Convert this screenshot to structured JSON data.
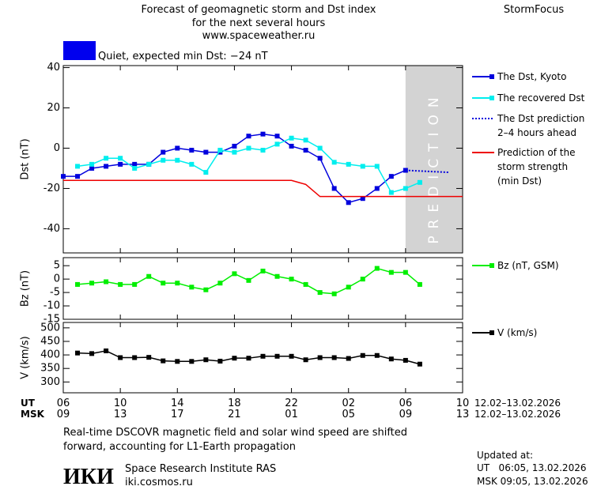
{
  "header": {
    "title_lines": [
      "Forecast of geomagnetic storm and Dst index",
      "for the next several hours",
      "www.spaceweather.ru"
    ],
    "brand": "StormFocus",
    "status": "Quiet, expected min Dst: −24 nT",
    "status_color": "#0000ee"
  },
  "time_axis": {
    "xlim": [
      0,
      28
    ],
    "ut_label": "UT",
    "msk_label": "MSK",
    "ut_ticks": [
      {
        "value": 0,
        "label": "06"
      },
      {
        "value": 4,
        "label": "10"
      },
      {
        "value": 8,
        "label": "14"
      },
      {
        "value": 12,
        "label": "18"
      },
      {
        "value": 16,
        "label": "22"
      },
      {
        "value": 20,
        "label": "02"
      },
      {
        "value": 24,
        "label": "06"
      },
      {
        "value": 28,
        "label": "10"
      }
    ],
    "msk_ticks": [
      {
        "value": 0,
        "label": "09"
      },
      {
        "value": 4,
        "label": "13"
      },
      {
        "value": 8,
        "label": "17"
      },
      {
        "value": 12,
        "label": "21"
      },
      {
        "value": 16,
        "label": "01"
      },
      {
        "value": 20,
        "label": "05"
      },
      {
        "value": 24,
        "label": "09"
      },
      {
        "value": 28,
        "label": "13"
      }
    ],
    "ut_dates": "12.02–13.02.2026",
    "msk_dates": "12.02–13.02.2026"
  },
  "chart_data": [
    {
      "type": "line",
      "y_label": "Dst (nT)",
      "xlim": [
        0,
        28
      ],
      "ylim": [
        -52,
        41
      ],
      "yticks": [
        40,
        20,
        0,
        -20,
        -40
      ],
      "prediction_zone": {
        "label": "PREDICTION",
        "from": 24,
        "to": 28
      },
      "series": [
        {
          "name": "The Dst, Kyoto",
          "color": "#0000dd",
          "marker": "square",
          "line_style": "solid",
          "x": [
            0,
            1,
            2,
            3,
            4,
            5,
            6,
            7,
            8,
            9,
            10,
            11,
            12,
            13,
            14,
            15,
            16,
            17,
            18,
            19,
            20,
            21,
            22,
            23,
            24
          ],
          "values": [
            -14,
            -14,
            -10,
            -9,
            -8,
            -8,
            -8,
            -2,
            0,
            -1,
            -2,
            -2,
            1,
            6,
            7,
            6,
            1,
            -1,
            -5,
            -20,
            -27,
            -25,
            -20,
            -14,
            -11
          ]
        },
        {
          "name": "The recovered Dst",
          "color": "#00eeee",
          "marker": "square",
          "line_style": "solid",
          "x": [
            1,
            2,
            3,
            4,
            5,
            6,
            7,
            8,
            9,
            10,
            11,
            12,
            13,
            14,
            15,
            16,
            17,
            18,
            19,
            20,
            21,
            22,
            23,
            24,
            25
          ],
          "values": [
            -9,
            -8,
            -5,
            -5,
            -10,
            -8,
            -6,
            -6,
            -8,
            -12,
            -1,
            -2,
            0,
            -1,
            2,
            5,
            4,
            0,
            -7,
            -8,
            -9,
            -9,
            -22,
            -20,
            -17
          ]
        },
        {
          "name": "The Dst prediction\n2–4 hours ahead",
          "color": "#0000dd",
          "marker": "none",
          "line_style": "dotted",
          "x": [
            24,
            27
          ],
          "values": [
            -11,
            -12
          ]
        },
        {
          "name": "Prediction of the\nstorm strength\n(min Dst)",
          "color": "#ee0000",
          "marker": "none",
          "line_style": "solid",
          "x": [
            0,
            16,
            17,
            18,
            28
          ],
          "values": [
            -16,
            -16,
            -18,
            -24,
            -24
          ]
        }
      ]
    },
    {
      "type": "line",
      "y_label": "Bz (nT)",
      "xlim": [
        0,
        28
      ],
      "ylim": [
        -15,
        8
      ],
      "yticks": [
        5,
        0,
        -5,
        -10,
        -15
      ],
      "series": [
        {
          "name": "Bz (nT, GSM)",
          "color": "#00ee00",
          "marker": "square",
          "line_style": "solid",
          "x": [
            1,
            2,
            3,
            4,
            5,
            6,
            7,
            8,
            9,
            10,
            11,
            12,
            13,
            14,
            15,
            16,
            17,
            18,
            19,
            20,
            21,
            22,
            23,
            24,
            25
          ],
          "values": [
            -2,
            -1.5,
            -1,
            -2,
            -2,
            1,
            -1.5,
            -1.5,
            -3,
            -4,
            -1.5,
            2,
            -0.5,
            3,
            1,
            0,
            -2,
            -5,
            -5.5,
            -3,
            0,
            4,
            2.5,
            2.5,
            -2
          ]
        }
      ]
    },
    {
      "type": "line",
      "y_label": "V (km/s)",
      "xlim": [
        0,
        28
      ],
      "ylim": [
        260,
        520
      ],
      "yticks": [
        500,
        450,
        400,
        350,
        300
      ],
      "series": [
        {
          "name": "V (km/s)",
          "color": "#000000",
          "marker": "square",
          "line_style": "solid",
          "x": [
            1,
            2,
            3,
            4,
            5,
            6,
            7,
            8,
            9,
            10,
            11,
            12,
            13,
            14,
            15,
            16,
            17,
            18,
            19,
            20,
            21,
            22,
            23,
            24,
            25
          ],
          "values": [
            407,
            405,
            415,
            390,
            390,
            391,
            378,
            376,
            376,
            382,
            377,
            388,
            388,
            395,
            395,
            395,
            382,
            390,
            390,
            387,
            398,
            398,
            385,
            380,
            366
          ]
        }
      ]
    }
  ],
  "footer": {
    "note": "Real-time DSCOVR magnetic field and solar wind speed are shifted\nforward, accounting for L1-Earth propagation",
    "logo": "ИКИ",
    "institute": "Space Research Institute RAS",
    "site": "iki.cosmos.ru",
    "updated_label": "Updated at:",
    "updated_ut": "UT   06:05, 13.02.2026",
    "updated_msk": "MSK 09:05, 13.02.2026"
  }
}
